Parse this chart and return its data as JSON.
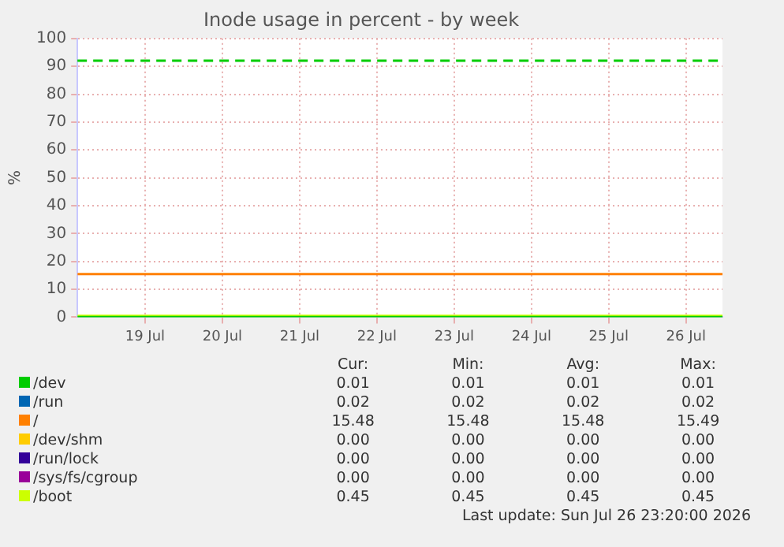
{
  "chart_data": {
    "type": "line",
    "title": "Inode usage in percent - by week",
    "ylabel": "%",
    "x": [
      "2026-07-18T15:00",
      "2026-07-26T23:20"
    ],
    "xlim": [
      "2026-07-18T15:00",
      "2026-07-26T23:20"
    ],
    "xticks": [
      {
        "value": "2026-07-19T12:00",
        "label": "19 Jul"
      },
      {
        "value": "2026-07-20T12:00",
        "label": "20 Jul"
      },
      {
        "value": "2026-07-21T12:00",
        "label": "21 Jul"
      },
      {
        "value": "2026-07-22T12:00",
        "label": "22 Jul"
      },
      {
        "value": "2026-07-23T12:00",
        "label": "23 Jul"
      },
      {
        "value": "2026-07-24T12:00",
        "label": "24 Jul"
      },
      {
        "value": "2026-07-25T12:00",
        "label": "25 Jul"
      },
      {
        "value": "2026-07-26T12:00",
        "label": "26 Jul"
      }
    ],
    "ylim": [
      0,
      100
    ],
    "yticks": [
      0,
      10,
      20,
      30,
      40,
      50,
      60,
      70,
      80,
      90,
      100
    ],
    "grid": true,
    "legend": "bottom left",
    "series": [
      {
        "name": "/dev",
        "color": "#00cc00",
        "values": [
          0.01,
          0.01
        ]
      },
      {
        "name": "/run",
        "color": "#0066b3",
        "values": [
          null,
          null
        ]
      },
      {
        "name": "/",
        "color": "#ff8000",
        "values": [
          15.48,
          15.49
        ]
      },
      {
        "name": "/dev/shm",
        "color": "#ffcc00",
        "values": [
          null,
          null
        ]
      },
      {
        "name": "/run/lock",
        "color": "#330099",
        "values": [
          null,
          null
        ]
      },
      {
        "name": "/sys/fs/cgroup",
        "color": "#990099",
        "values": [
          null,
          null
        ]
      },
      {
        "name": "/boot",
        "color": "#ccff00",
        "values": [
          0.45,
          0.45
        ]
      }
    ],
    "ref_lines": [
      {
        "axis": "y",
        "value": 92,
        "color": "#00cc00",
        "line_style": "dashed"
      }
    ],
    "annotations": [
      "Cur:",
      "Min:",
      "Avg:",
      "Max:",
      "0.01",
      "0.01",
      "0.01",
      "0.01",
      "0.02",
      "0.02",
      "0.02",
      "0.02",
      "15.48",
      "15.48",
      "15.48",
      "15.49",
      "0.00",
      "0.00",
      "0.00",
      "0.00",
      "0.00",
      "0.00",
      "0.00",
      "0.00",
      "0.00",
      "0.00",
      "0.00",
      "0.00",
      "0.45",
      "0.45",
      "0.45",
      "0.45",
      "Last update: Sun Jul 26 23:20:00 2026"
    ]
  }
}
